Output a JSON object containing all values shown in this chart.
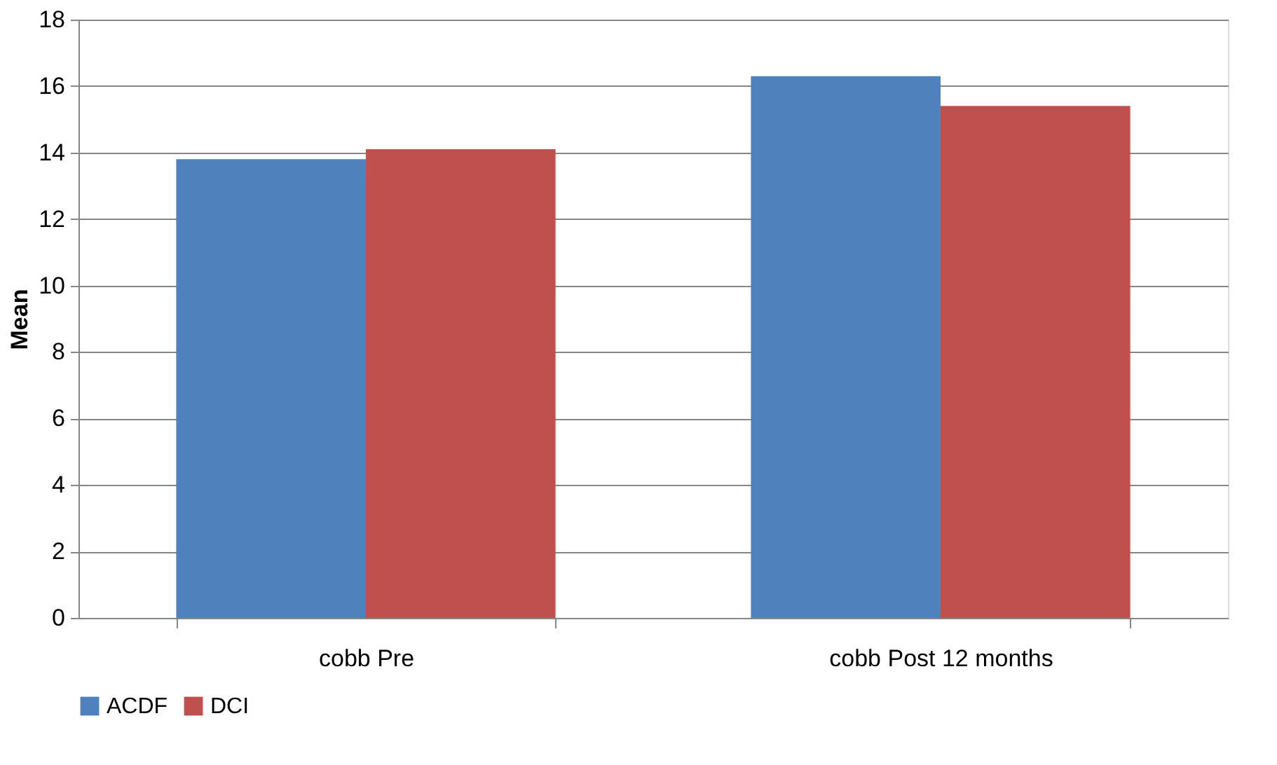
{
  "chart_data": {
    "type": "bar",
    "ylabel": "Mean",
    "categories": [
      "cobb Pre",
      "cobb Post 12 months"
    ],
    "series": [
      {
        "name": "ACDF",
        "color": "#4f81bd",
        "values": [
          13.8,
          16.3
        ]
      },
      {
        "name": "DCI",
        "color": "#c0504d",
        "values": [
          14.1,
          15.4
        ]
      }
    ],
    "ylim": [
      0,
      18
    ],
    "yticks": [
      0,
      2,
      4,
      6,
      8,
      10,
      12,
      14,
      16,
      18
    ],
    "grid": "y",
    "legend": "bottom"
  }
}
